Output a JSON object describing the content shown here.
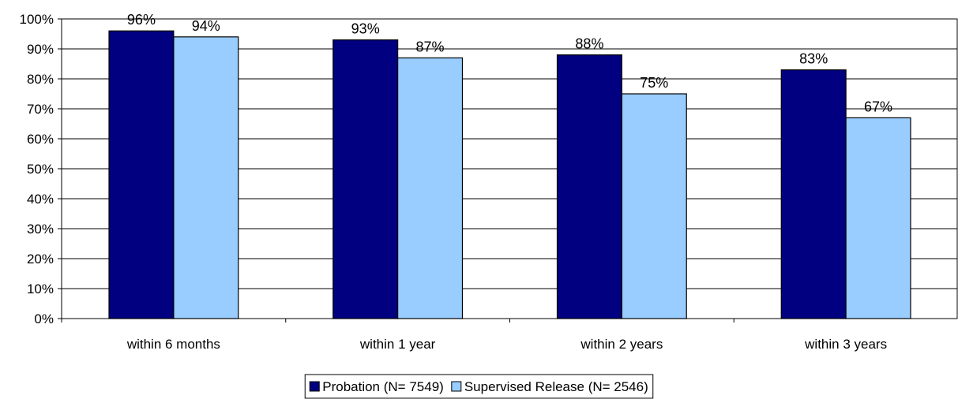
{
  "chart_data": {
    "type": "bar",
    "categories": [
      "within 6 months",
      "within 1 year",
      "within 2 years",
      "within 3 years"
    ],
    "series": [
      {
        "name": "Probation (N= 7549)",
        "values": [
          96,
          93,
          88,
          83
        ],
        "color": "#000080"
      },
      {
        "name": "Supervised Release (N= 2546)",
        "values": [
          94,
          87,
          75,
          67
        ],
        "color": "#99ccff"
      }
    ],
    "data_labels": [
      [
        "96%",
        "93%",
        "88%",
        "83%"
      ],
      [
        "94%",
        "87%",
        "75%",
        "67%"
      ]
    ],
    "y_ticks": [
      "0%",
      "10%",
      "20%",
      "30%",
      "40%",
      "50%",
      "60%",
      "70%",
      "80%",
      "90%",
      "100%"
    ],
    "ylim": [
      0,
      100
    ],
    "grid": true,
    "legend_position": "bottom-center"
  }
}
